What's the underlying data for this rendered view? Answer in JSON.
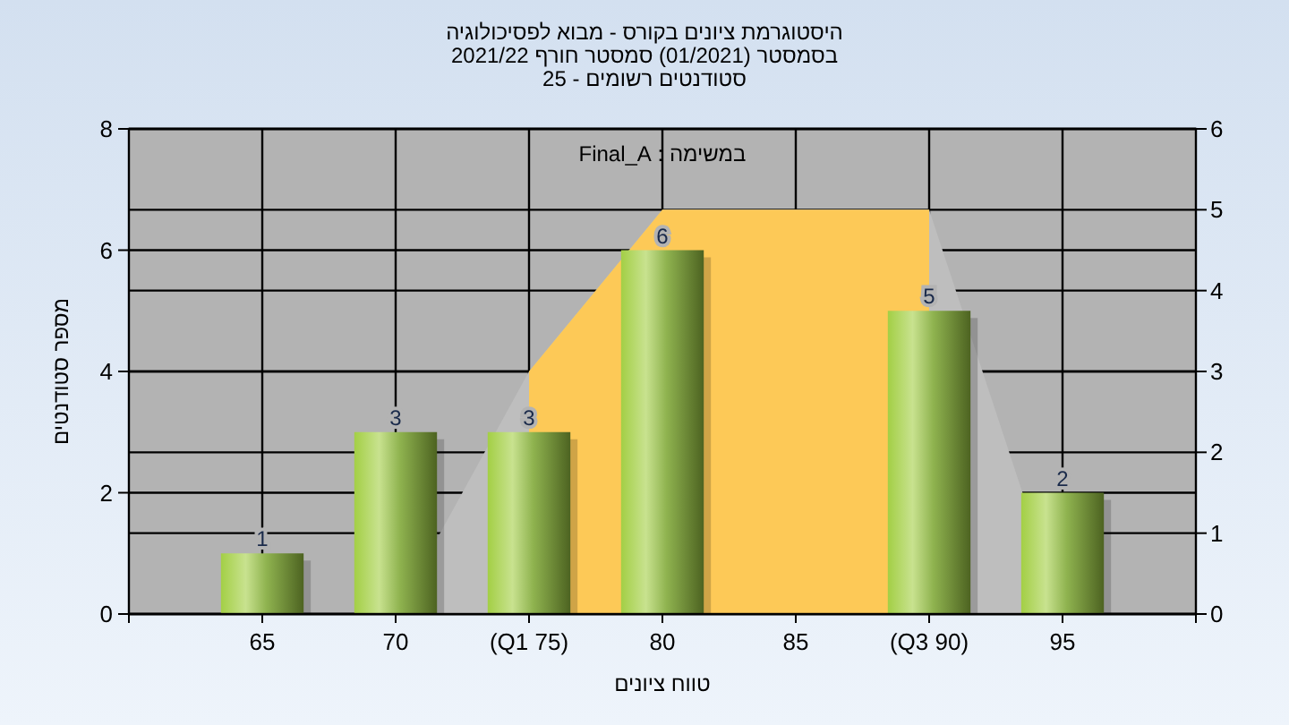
{
  "chart_data": {
    "type": "bar",
    "title": "היסטוגרמת ציונים בקורס - מבוא לפסיכולוגיה\nבסמסטר  (01/2021)  סמסטר חורף 2021/22\nסטודנטים רשומים - 25",
    "xlabel": "טווח ציונים",
    "ylabel": "מספר סטודנטים",
    "annotations": [
      "במשימה : Final_A"
    ],
    "x": [
      65,
      70,
      75,
      80,
      85,
      90,
      95
    ],
    "xlim": [
      60,
      100
    ],
    "xticks": [
      65,
      70,
      {
        "value": 75,
        "label": "(Q1 75)"
      },
      80,
      85,
      {
        "value": 90,
        "label": "(Q3 90)"
      },
      95
    ],
    "ylim": [
      0,
      8
    ],
    "yticks": [
      0,
      2,
      4,
      6,
      8
    ],
    "y2lim": [
      0,
      6
    ],
    "y2ticks": [
      0,
      1,
      2,
      3,
      4,
      5,
      6
    ],
    "grid": true,
    "series": [
      {
        "type": "area",
        "axis": "y2",
        "color": "#bebebe",
        "x": [
          70,
          75,
          80,
          90,
          95
        ],
        "values": [
          0,
          3,
          5,
          5,
          0
        ]
      },
      {
        "type": "area",
        "axis": "y2",
        "color": "#fdc957",
        "x": [
          75,
          80,
          90
        ],
        "values": [
          3,
          5,
          5
        ]
      },
      {
        "color": "#8fb34f",
        "values": [
          1,
          3,
          3,
          6,
          0,
          5,
          2
        ],
        "value_labels": [
          "1",
          "3",
          "3",
          "6",
          null,
          "5",
          "2"
        ]
      }
    ]
  }
}
